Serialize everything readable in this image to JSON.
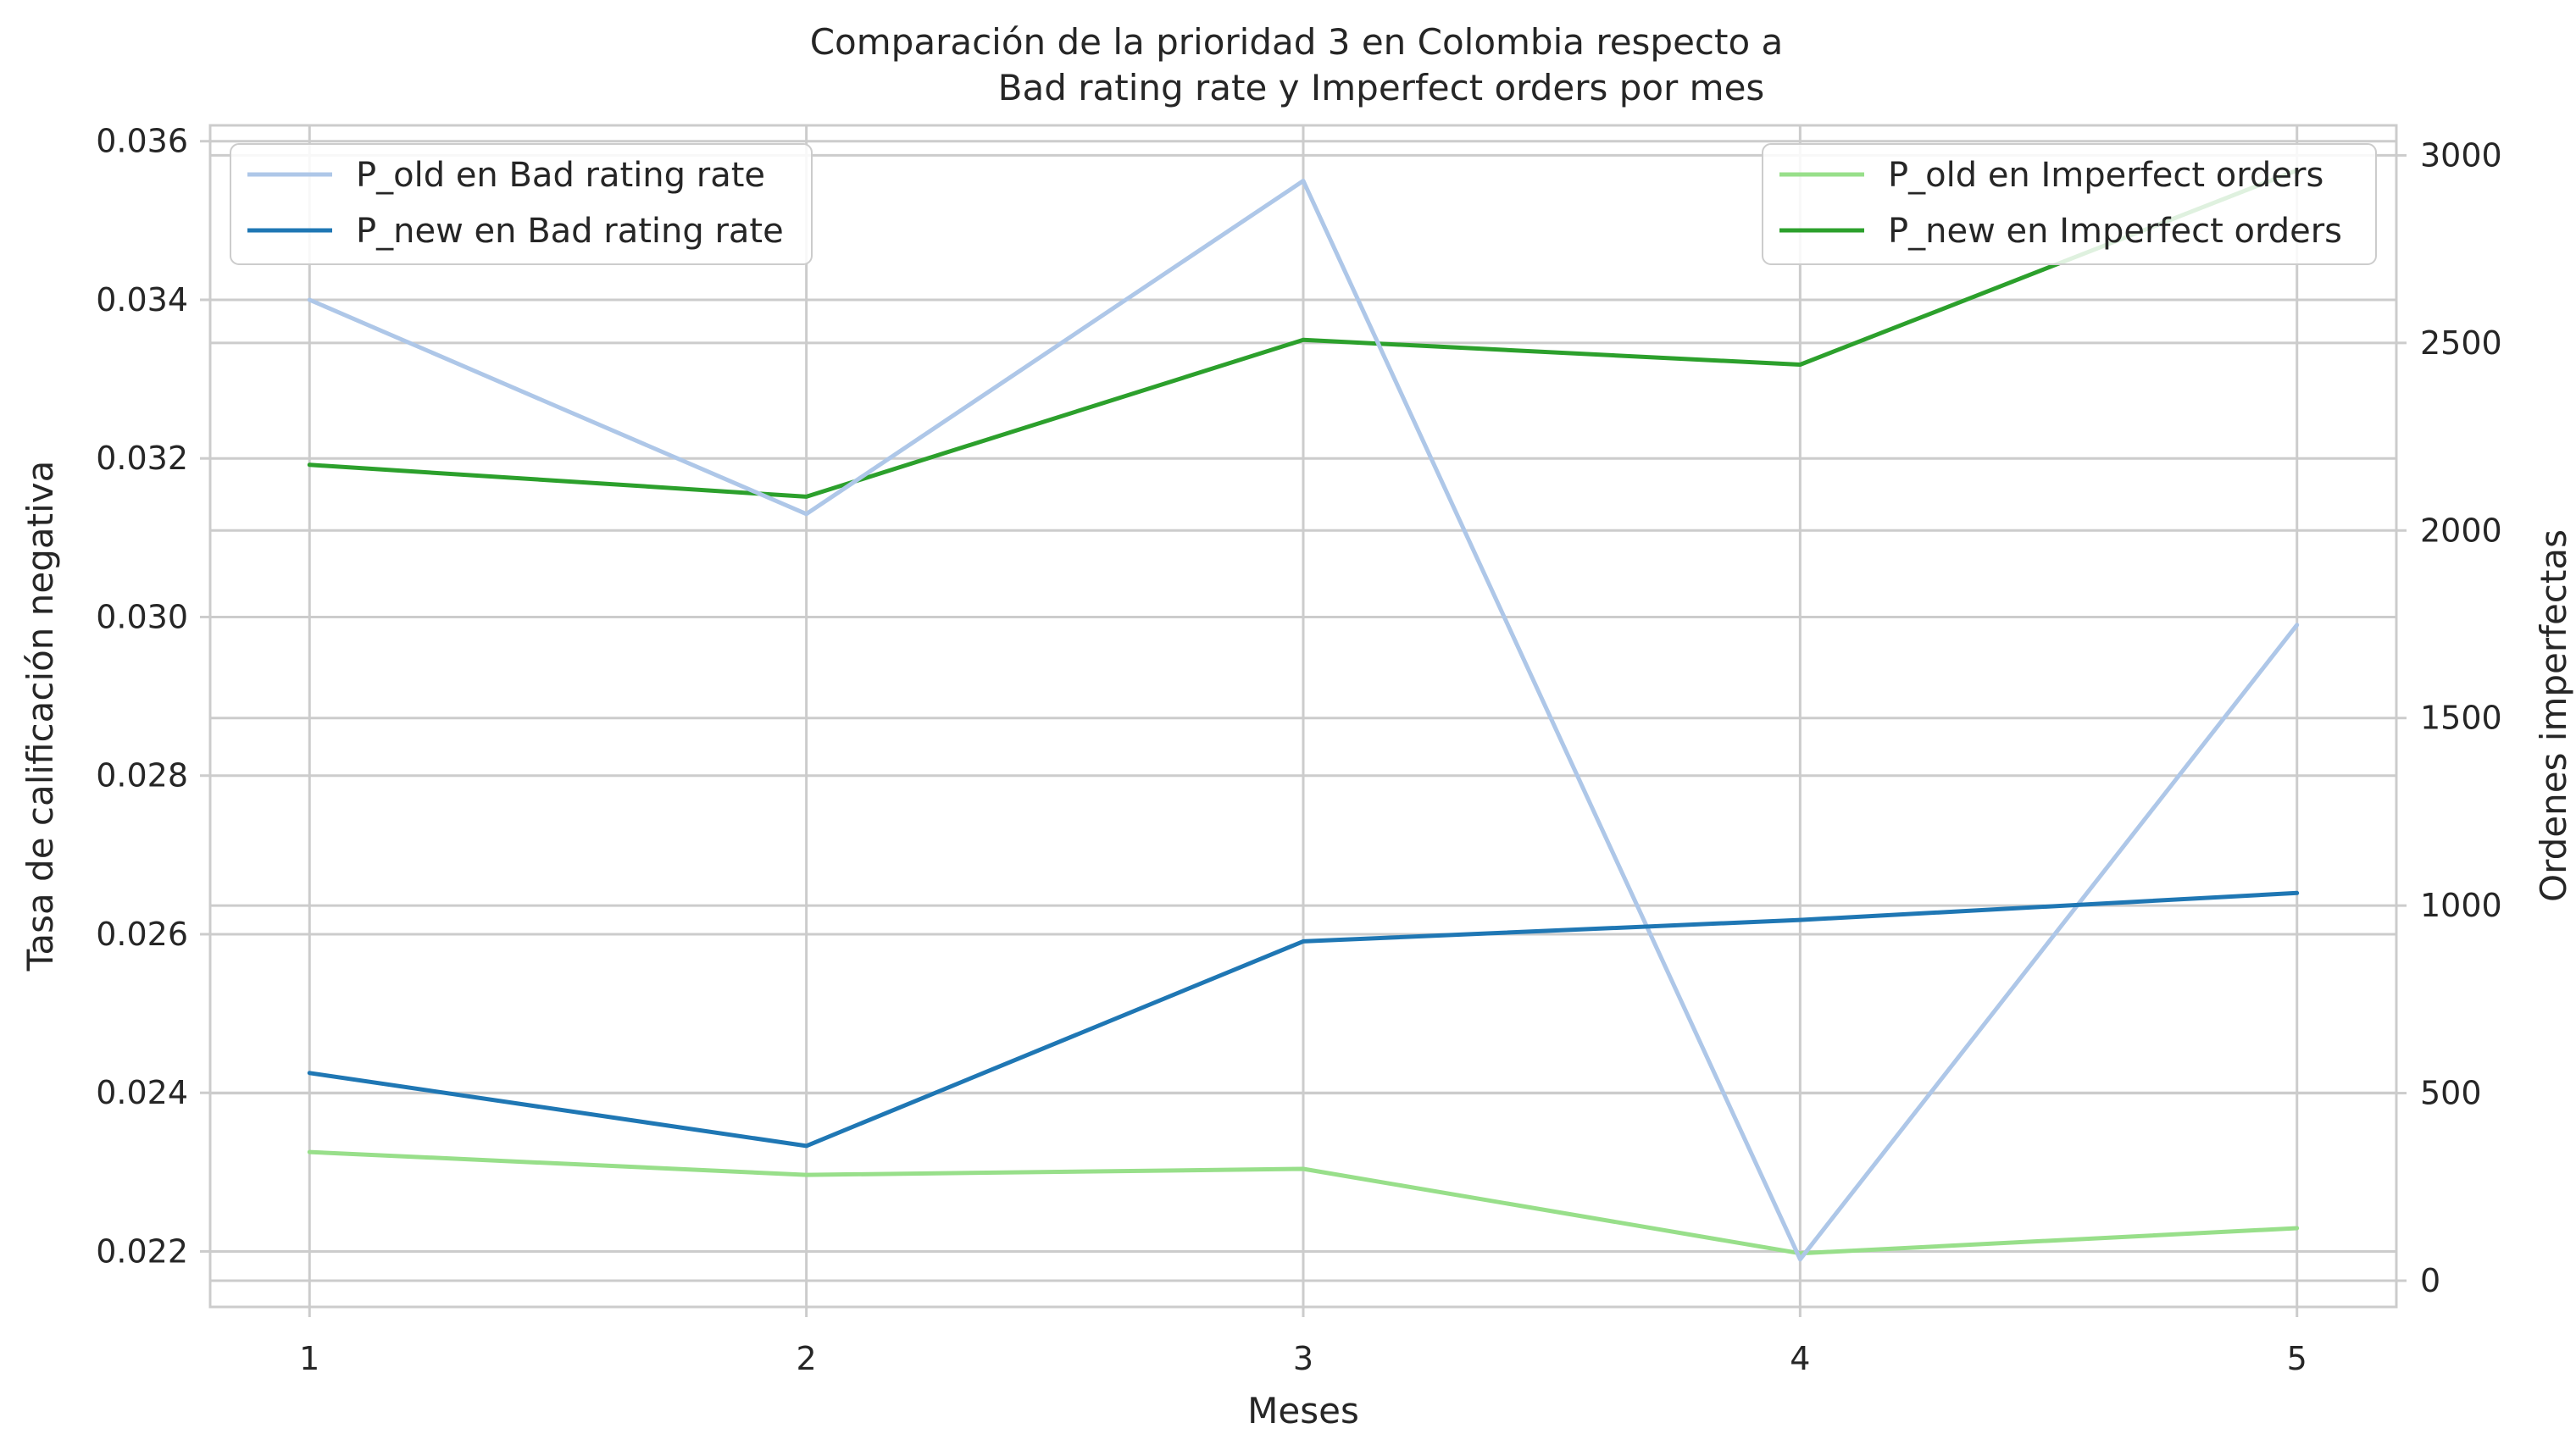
{
  "chart_data": {
    "type": "line",
    "title_line1": "Comparación de la prioridad 3 en Colombia respecto a",
    "title_line2": "Bad rating rate y Imperfect orders por mes",
    "xlabel": "Meses",
    "ylabel_left": "Tasa de calificación negativa",
    "ylabel_right": "Ordenes imperfectas",
    "x": [
      1,
      2,
      3,
      4,
      5
    ],
    "x_ticks": [
      "1",
      "2",
      "3",
      "4",
      "5"
    ],
    "y_left_ticks": [
      "0.022",
      "0.024",
      "0.026",
      "0.028",
      "0.030",
      "0.032",
      "0.034",
      "0.036"
    ],
    "y_right_ticks": [
      "0",
      "500",
      "1000",
      "1500",
      "2000",
      "2500",
      "3000"
    ],
    "xlim": [
      0.8,
      5.2
    ],
    "ylim_left": [
      0.0213,
      0.0362
    ],
    "ylim_right": [
      -70,
      3080
    ],
    "grid": true,
    "series_left": [
      {
        "name": "P_old en Bad rating rate",
        "color": "#aec7e8",
        "values": [
          0.034,
          0.0313,
          0.0355,
          0.0219,
          0.0299
        ]
      },
      {
        "name": "P_new en Bad rating rate",
        "color": "#1f77b4",
        "values": [
          0.02425,
          0.02333,
          0.02591,
          0.02618,
          0.02652
        ]
      }
    ],
    "series_right": [
      {
        "name": "P_old en Imperfect orders",
        "color": "#98df8a",
        "values": [
          343,
          282,
          298,
          73,
          140
        ]
      },
      {
        "name": "P_new en Imperfect orders",
        "color": "#2ca02c",
        "values": [
          2175,
          2090,
          2508,
          2442,
          2960
        ]
      }
    ],
    "legend_left_position": "upper left",
    "legend_right_position": "upper right"
  }
}
